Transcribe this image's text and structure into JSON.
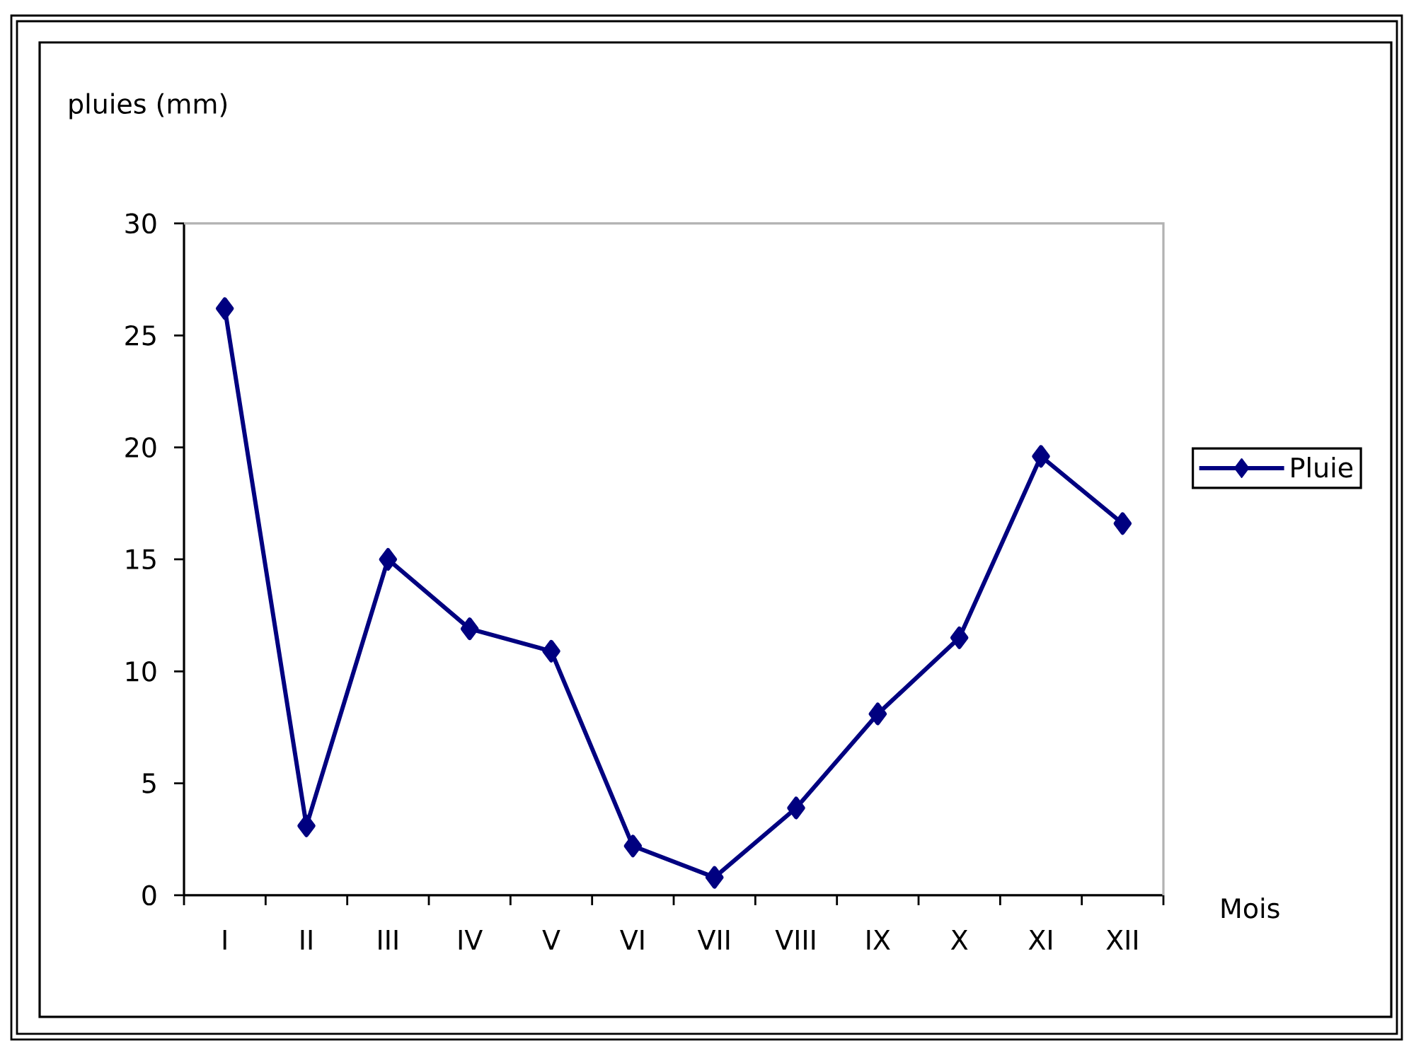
{
  "chart_data": {
    "type": "line",
    "xlabel": "Mois",
    "ylabel": "pluies (mm)",
    "categories": [
      "I",
      "II",
      "III",
      "IV",
      "V",
      "VI",
      "VII",
      "VIII",
      "IX",
      "X",
      "XI",
      "XII"
    ],
    "series": [
      {
        "name": "Pluie",
        "color": "#000080",
        "values": [
          26.2,
          3.1,
          15.0,
          11.9,
          10.9,
          2.2,
          0.8,
          3.9,
          8.1,
          11.5,
          19.6,
          16.6
        ]
      }
    ],
    "ylim": [
      0,
      30
    ],
    "yticks": [
      0,
      5,
      10,
      15,
      20,
      25,
      30
    ],
    "legend": "right",
    "marker": "diamond",
    "line_style": "solid"
  }
}
